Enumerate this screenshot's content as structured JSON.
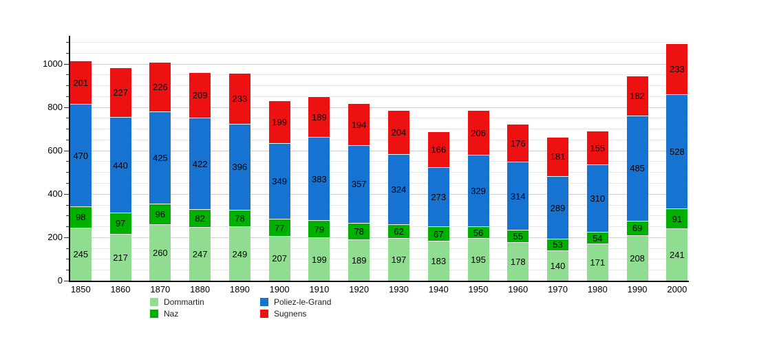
{
  "chart_data": {
    "type": "bar",
    "stacked": true,
    "title": "",
    "xlabel": "",
    "ylabel": "",
    "categories": [
      "1850",
      "1860",
      "1870",
      "1880",
      "1890",
      "1900",
      "1910",
      "1920",
      "1930",
      "1940",
      "1950",
      "1960",
      "1970",
      "1980",
      "1990",
      "2000"
    ],
    "series": [
      {
        "name": "Dommartin",
        "color": "#90dc90",
        "values": [
          245,
          217,
          260,
          247,
          249,
          207,
          199,
          189,
          197,
          183,
          195,
          178,
          140,
          171,
          208,
          241
        ]
      },
      {
        "name": "Naz",
        "color": "#00b000",
        "values": [
          98,
          97,
          96,
          82,
          78,
          77,
          79,
          78,
          62,
          67,
          56,
          55,
          53,
          54,
          69,
          91
        ]
      },
      {
        "name": "Poliez-le-Grand",
        "color": "#1673d2",
        "values": [
          470,
          440,
          425,
          422,
          396,
          349,
          383,
          357,
          324,
          273,
          329,
          314,
          289,
          310,
          485,
          528
        ]
      },
      {
        "name": "Sugnens",
        "color": "#ee1111",
        "values": [
          201,
          227,
          226,
          209,
          233,
          199,
          189,
          194,
          204,
          166,
          206,
          176,
          181,
          155,
          182,
          233
        ]
      }
    ],
    "ylim": [
      0,
      1100
    ],
    "ytick_major": 200,
    "ytick_minor": 50,
    "y_tick_labels": [
      "0",
      "200",
      "400",
      "600",
      "800",
      "1000"
    ],
    "grid": true,
    "value_labels": true,
    "legend_position": "bottom",
    "legend": [
      "Dommartin",
      "Naz",
      "Poliez-le-Grand",
      "Sugnens"
    ]
  },
  "colors": {
    "axis": "#000000",
    "grid_minor": "#e6e6e6",
    "grid_major": "#cfcfcf",
    "background": "#ffffff",
    "label_text": "#000000"
  }
}
